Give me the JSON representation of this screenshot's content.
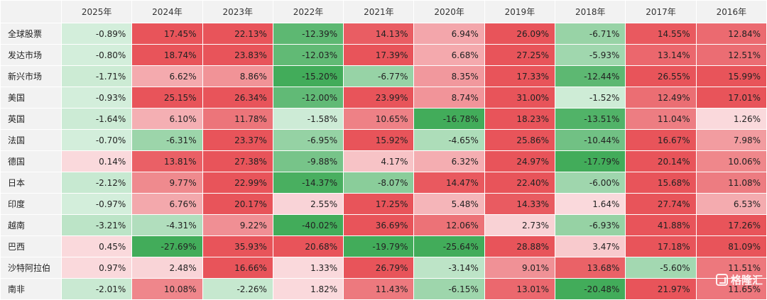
{
  "chart_data": {
    "type": "heatmap",
    "corner": "",
    "columns": [
      "2025年",
      "2024年",
      "2023年",
      "2022年",
      "2021年",
      "2020年",
      "2019年",
      "2018年",
      "2017年",
      "2016年"
    ],
    "rows": [
      "全球股票",
      "发达市场",
      "新兴市场",
      "美国",
      "英国",
      "法国",
      "德国",
      "日本",
      "印度",
      "越南",
      "巴西",
      "沙特阿拉伯",
      "南非"
    ],
    "values": [
      [
        -0.89,
        17.45,
        22.13,
        -12.39,
        14.13,
        6.94,
        26.09,
        -6.71,
        14.55,
        12.84
      ],
      [
        -0.8,
        18.74,
        23.83,
        -12.03,
        17.39,
        6.68,
        27.25,
        -5.93,
        13.14,
        12.51
      ],
      [
        -1.71,
        6.62,
        8.86,
        -15.2,
        -6.77,
        8.35,
        17.33,
        -12.44,
        26.55,
        15.99
      ],
      [
        -0.93,
        25.15,
        26.34,
        -12.0,
        23.99,
        8.74,
        31.0,
        -1.52,
        12.49,
        17.01
      ],
      [
        -1.64,
        6.1,
        11.78,
        -1.58,
        10.65,
        -16.78,
        18.23,
        -13.51,
        11.04,
        1.26
      ],
      [
        -0.7,
        -6.31,
        23.37,
        -6.95,
        15.92,
        -4.65,
        25.86,
        -10.44,
        16.67,
        7.98
      ],
      [
        0.14,
        13.81,
        27.38,
        -9.88,
        4.17,
        6.32,
        24.97,
        -17.79,
        20.14,
        10.06
      ],
      [
        -2.12,
        9.77,
        22.99,
        -14.37,
        -8.07,
        14.47,
        22.4,
        -6.0,
        15.68,
        11.08
      ],
      [
        -0.97,
        6.76,
        20.17,
        2.55,
        17.25,
        5.48,
        14.33,
        1.64,
        27.74,
        6.53
      ],
      [
        -3.21,
        -4.31,
        9.22,
        -40.02,
        36.69,
        12.06,
        2.73,
        -6.93,
        41.88,
        17.26
      ],
      [
        0.45,
        -27.69,
        35.93,
        20.68,
        -19.79,
        -25.64,
        28.88,
        3.47,
        17.18,
        81.09
      ],
      [
        0.97,
        2.48,
        16.66,
        1.33,
        26.79,
        -3.14,
        9.01,
        13.68,
        -5.6,
        11.51
      ],
      [
        -2.01,
        10.08,
        -2.26,
        1.82,
        11.43,
        -6.15,
        13.01,
        -20.48,
        21.97,
        11.65
      ]
    ],
    "unit": "%",
    "colors": {
      "positive_strong": "#e8545a",
      "positive_light": "#fad9dc",
      "negative_light": "#d3eedb",
      "negative_strong": "#42ac5a",
      "header_bg": "#f2f2f2"
    }
  },
  "watermark": {
    "text": "格隆汇",
    "icon": "gelonghui-logo-icon"
  }
}
